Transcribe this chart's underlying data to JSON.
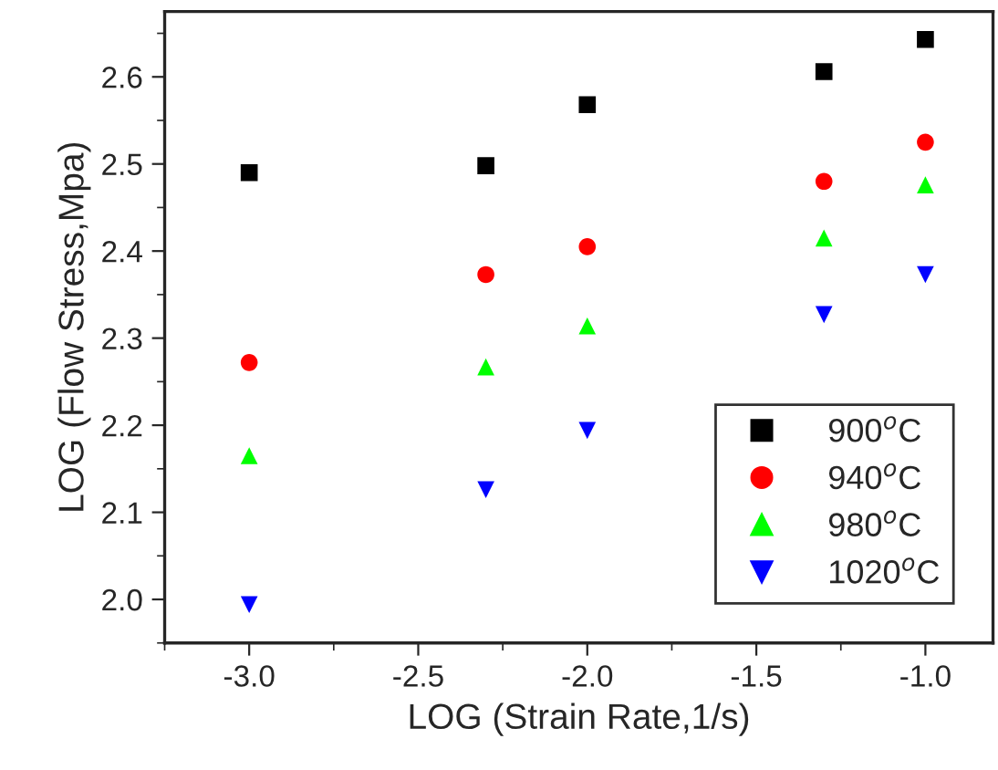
{
  "chart_data": {
    "type": "scatter",
    "xlabel": "LOG (Strain Rate,1/s)",
    "ylabel": "LOG (Flow Stress,Mpa)",
    "x": [
      -3.0,
      -2.3,
      -2.0,
      -1.3,
      -1.0
    ],
    "series": [
      {
        "name": "900$^{o}$C",
        "color": "#000000",
        "marker": "square",
        "values": [
          2.49,
          2.498,
          2.568,
          2.606,
          2.643
        ]
      },
      {
        "name": "940$^{o}$C",
        "color": "#ff0000",
        "marker": "circle",
        "values": [
          2.272,
          2.373,
          2.405,
          2.48,
          2.525
        ]
      },
      {
        "name": "980$^{o}$C",
        "color": "#00ff00",
        "marker": "triangle",
        "values": [
          2.165,
          2.267,
          2.314,
          2.415,
          2.476
        ]
      },
      {
        "name": "1020$^{o}$C",
        "color": "#0000ff",
        "marker": "triangle_down",
        "values": [
          1.994,
          2.126,
          2.194,
          2.327,
          2.373
        ]
      }
    ],
    "xlim": [
      -3.25,
      -0.8
    ],
    "ylim": [
      1.95,
      2.675
    ],
    "xticks": [
      {
        "value": -3.0,
        "label": "-3.0"
      },
      {
        "value": -2.5,
        "label": "-2.5"
      },
      {
        "value": -2.0,
        "label": "-2.0"
      },
      {
        "value": -1.5,
        "label": "-1.5"
      },
      {
        "value": -1.0,
        "label": "-1.0"
      }
    ],
    "yticks": [
      {
        "value": 2.0,
        "label": "2.0"
      },
      2.1,
      2.2,
      2.3,
      2.4,
      2.5,
      2.6
    ],
    "grid": false,
    "legend": "bottom right"
  }
}
